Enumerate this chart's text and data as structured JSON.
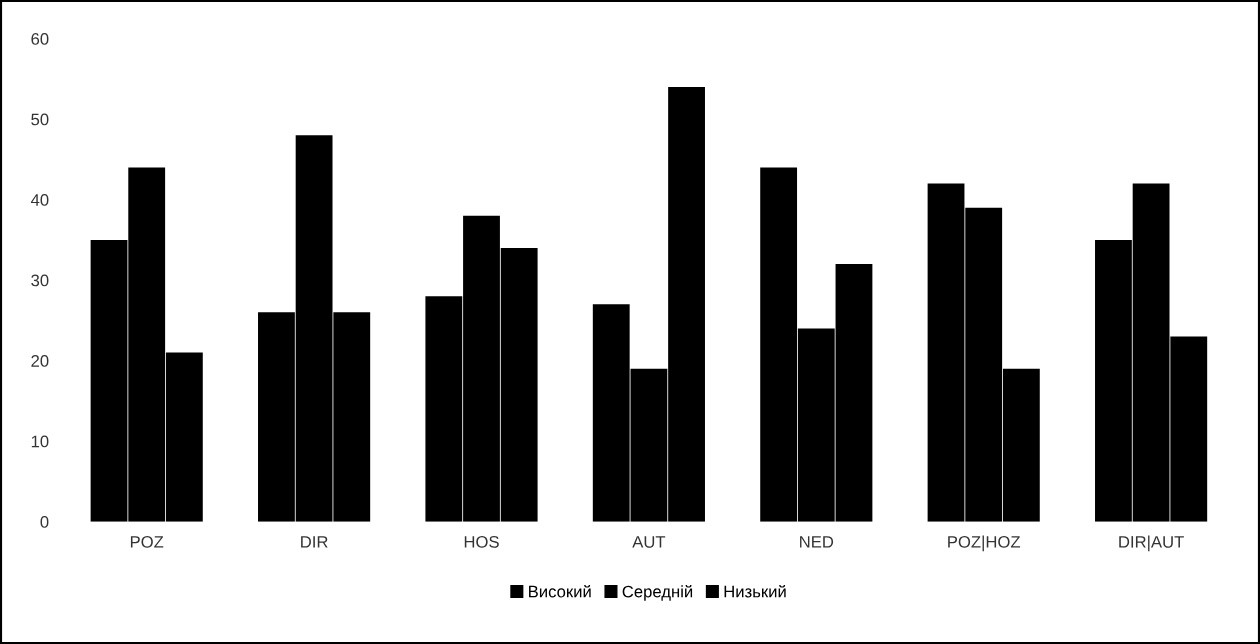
{
  "chart_data": {
    "type": "bar",
    "categories": [
      "POZ",
      "DIR",
      "HOS",
      "AUT",
      "NED",
      "POZ|HOZ",
      "DIR|AUT"
    ],
    "series": [
      {
        "name": "Високий",
        "color": "#000000",
        "values": [
          35,
          26,
          28,
          27,
          44,
          42,
          35
        ]
      },
      {
        "name": "Середній",
        "color": "#000000",
        "values": [
          44,
          48,
          38,
          19,
          24,
          39,
          42
        ]
      },
      {
        "name": "Низький",
        "color": "#000000",
        "values": [
          21,
          26,
          34,
          54,
          32,
          19,
          23
        ]
      }
    ],
    "ylim": [
      0,
      60
    ],
    "yticks": [
      0,
      10,
      20,
      30,
      40,
      50,
      60
    ],
    "grid": false,
    "legend": "bottom"
  }
}
